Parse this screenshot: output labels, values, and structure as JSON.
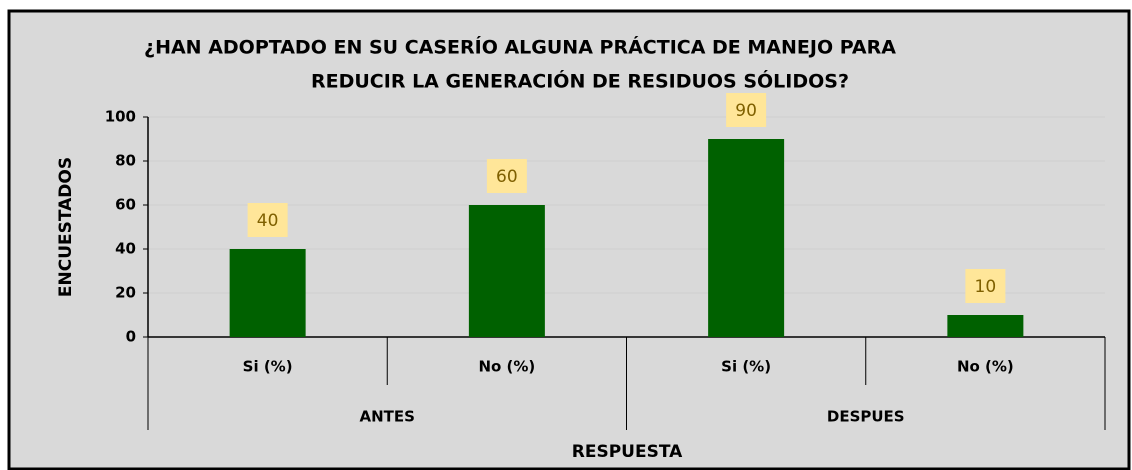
{
  "chart_data": {
    "type": "bar",
    "title": [
      "¿HAN ADOPTADO EN SU CASERÍO ALGUNA PRÁCTICA DE MANEJO PARA",
      "REDUCIR LA GENERACIÓN DE RESIDUOS SÓLIDOS?"
    ],
    "groups": [
      {
        "name": "ANTES",
        "categories": [
          "Si (%)",
          "No (%)"
        ]
      },
      {
        "name": "DESPUES",
        "categories": [
          "Si (%)",
          "No (%)"
        ]
      }
    ],
    "values": [
      40,
      60,
      90,
      10
    ],
    "color": "#006100",
    "label_box_color": "#ffe699",
    "x_label": "RESPUESTA",
    "y_label": "ENCUESTADOS",
    "ylim": [
      0,
      100
    ],
    "yticks": [
      0,
      20,
      40,
      60,
      80,
      100
    ],
    "grid": true
  }
}
